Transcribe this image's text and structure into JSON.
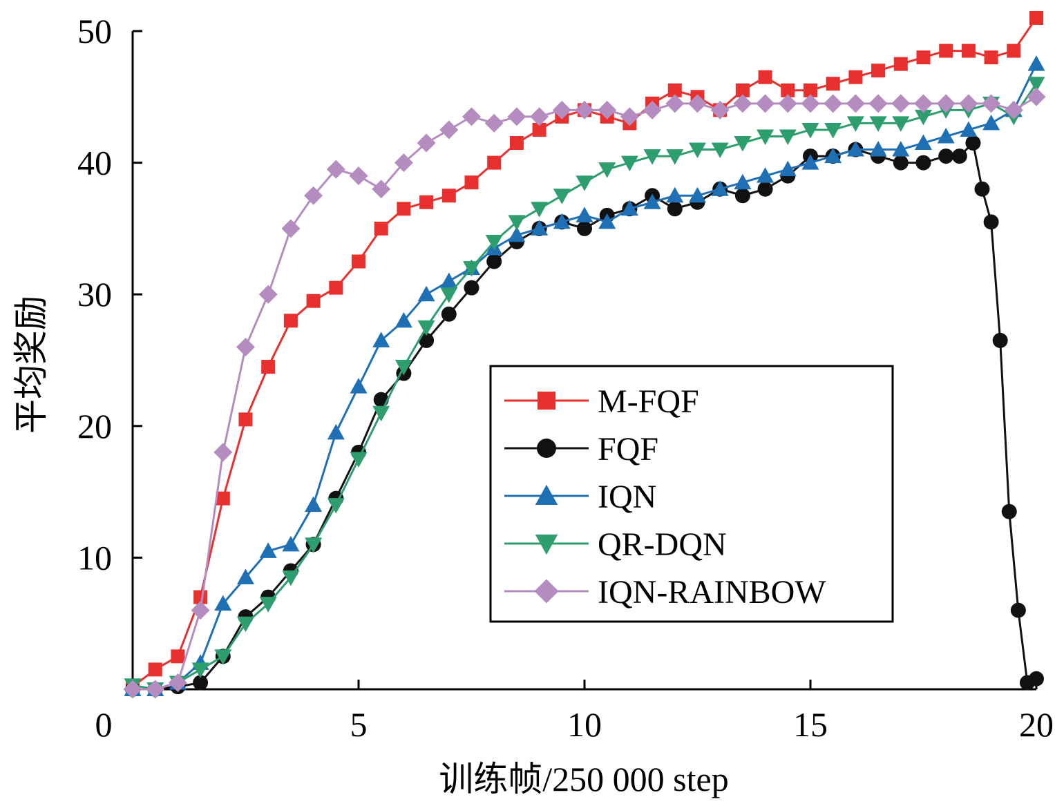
{
  "chart_data": {
    "type": "line",
    "title": "",
    "xlabel": "训练帧/250 000 step",
    "ylabel": "平均奖励",
    "xlim": [
      0,
      20
    ],
    "ylim": [
      0,
      50
    ],
    "x_ticks": [
      0,
      5,
      10,
      15,
      20
    ],
    "y_ticks": [
      10,
      20,
      30,
      40,
      50
    ],
    "x_tick_labels": [
      "0",
      "5",
      "10",
      "15",
      "20"
    ],
    "y_tick_labels": [
      "10",
      "20",
      "30",
      "40",
      "50"
    ],
    "grid": false,
    "legend_position": "center-right",
    "series": [
      {
        "name": "M-FQF",
        "color": "#e8312f",
        "marker": "square",
        "x": [
          0,
          0.5,
          1,
          1.5,
          2,
          2.5,
          3,
          3.5,
          4,
          4.5,
          5,
          5.5,
          6,
          6.5,
          7,
          7.5,
          8,
          8.5,
          9,
          9.5,
          10,
          10.5,
          11,
          11.5,
          12,
          12.5,
          13,
          13.5,
          14,
          14.5,
          15,
          15.5,
          16,
          16.5,
          17,
          17.5,
          18,
          18.5,
          19,
          19.5,
          20
        ],
        "y": [
          0.2,
          1.5,
          2.5,
          7,
          14.5,
          20.5,
          24.5,
          28,
          29.5,
          30.5,
          32.5,
          35,
          36.5,
          37,
          37.5,
          38.5,
          40,
          41.5,
          42.5,
          43.5,
          44,
          43.5,
          43,
          44.5,
          45.5,
          45,
          44,
          45.5,
          46.5,
          45.5,
          45.5,
          46,
          46.5,
          47,
          47.5,
          48,
          48.5,
          48.5,
          48,
          48.5,
          51
        ]
      },
      {
        "name": "FQF",
        "color": "#111111",
        "marker": "circle",
        "x": [
          0,
          0.5,
          1,
          1.5,
          2,
          2.5,
          3,
          3.5,
          4,
          4.5,
          5,
          5.5,
          6,
          6.5,
          7,
          7.5,
          8,
          8.5,
          9,
          9.5,
          10,
          10.5,
          11,
          11.5,
          12,
          12.5,
          13,
          13.5,
          14,
          14.5,
          15,
          15.5,
          16,
          16.5,
          17,
          17.5,
          18,
          18.3,
          18.6,
          18.8,
          19,
          19.2,
          19.4,
          19.6,
          19.8,
          20
        ],
        "y": [
          0,
          0,
          0.2,
          0.5,
          2.5,
          5.5,
          7,
          9,
          11,
          14.5,
          18,
          22,
          24,
          26.5,
          28.5,
          30.5,
          32.5,
          34,
          35,
          35.5,
          35,
          36,
          36.5,
          37.5,
          36.5,
          37,
          38,
          37.5,
          38,
          39,
          40.5,
          40.5,
          41,
          40.5,
          40,
          40,
          40.5,
          40.5,
          41.5,
          38,
          35.5,
          26.5,
          13.5,
          6,
          0.5,
          0.8
        ]
      },
      {
        "name": "IQN",
        "color": "#1f6fb4",
        "marker": "triangle-up",
        "x": [
          0,
          0.5,
          1,
          1.5,
          2,
          2.5,
          3,
          3.5,
          4,
          4.5,
          5,
          5.5,
          6,
          6.5,
          7,
          7.5,
          8,
          8.5,
          9,
          9.5,
          10,
          10.5,
          11,
          11.5,
          12,
          12.5,
          13,
          13.5,
          14,
          14.5,
          15,
          15.5,
          16,
          16.5,
          17,
          17.5,
          18,
          18.5,
          19,
          19.5,
          20
        ],
        "y": [
          0,
          0,
          0.5,
          2,
          6.5,
          8.5,
          10.5,
          11,
          14,
          19.5,
          23,
          26.5,
          28,
          30,
          31,
          32,
          33.5,
          34.5,
          35,
          35.5,
          36,
          35.5,
          36.5,
          37,
          37.5,
          37.5,
          38,
          38.5,
          39,
          39.5,
          40,
          40.5,
          41,
          41,
          41,
          41.5,
          42,
          42.5,
          43,
          44,
          47.5
        ]
      },
      {
        "name": "QR-DQN",
        "color": "#2e9e6f",
        "marker": "triangle-down",
        "x": [
          0,
          0.5,
          1,
          1.5,
          2,
          2.5,
          3,
          3.5,
          4,
          4.5,
          5,
          5.5,
          6,
          6.5,
          7,
          7.5,
          8,
          8.5,
          9,
          9.5,
          10,
          10.5,
          11,
          11.5,
          12,
          12.5,
          13,
          13.5,
          14,
          14.5,
          15,
          15.5,
          16,
          16.5,
          17,
          17.5,
          18,
          18.5,
          19,
          19.5,
          20
        ],
        "y": [
          0.3,
          0,
          0.5,
          1.5,
          2.5,
          5,
          6.5,
          8.5,
          11,
          14,
          17.5,
          21,
          24.5,
          27.5,
          30,
          32,
          34,
          35.5,
          36.5,
          37.5,
          38.5,
          39.5,
          40,
          40.5,
          40.5,
          41,
          41,
          41.5,
          42,
          42,
          42.5,
          42.5,
          43,
          43,
          43,
          43.5,
          44,
          44,
          44.5,
          43.5,
          46
        ]
      },
      {
        "name": "IQN-RAINBOW",
        "color": "#b48cc0",
        "marker": "diamond",
        "x": [
          0,
          0.5,
          1,
          1.5,
          2,
          2.5,
          3,
          3.5,
          4,
          4.5,
          5,
          5.5,
          6,
          6.5,
          7,
          7.5,
          8,
          8.5,
          9,
          9.5,
          10,
          10.5,
          11,
          11.5,
          12,
          12.5,
          13,
          13.5,
          14,
          14.5,
          15,
          15.5,
          16,
          16.5,
          17,
          17.5,
          18,
          18.5,
          19,
          19.5,
          20
        ],
        "y": [
          0,
          0,
          0.5,
          6,
          18,
          26,
          30,
          35,
          37.5,
          39.5,
          39,
          38,
          40,
          41.5,
          42.5,
          43.5,
          43,
          43.5,
          43.5,
          44,
          44,
          44,
          43.5,
          44,
          44.5,
          44.5,
          44,
          44.5,
          44.5,
          44.5,
          44.5,
          44.5,
          44.5,
          44.5,
          44.5,
          44.5,
          44.5,
          44.5,
          44.5,
          44,
          45
        ]
      }
    ]
  }
}
